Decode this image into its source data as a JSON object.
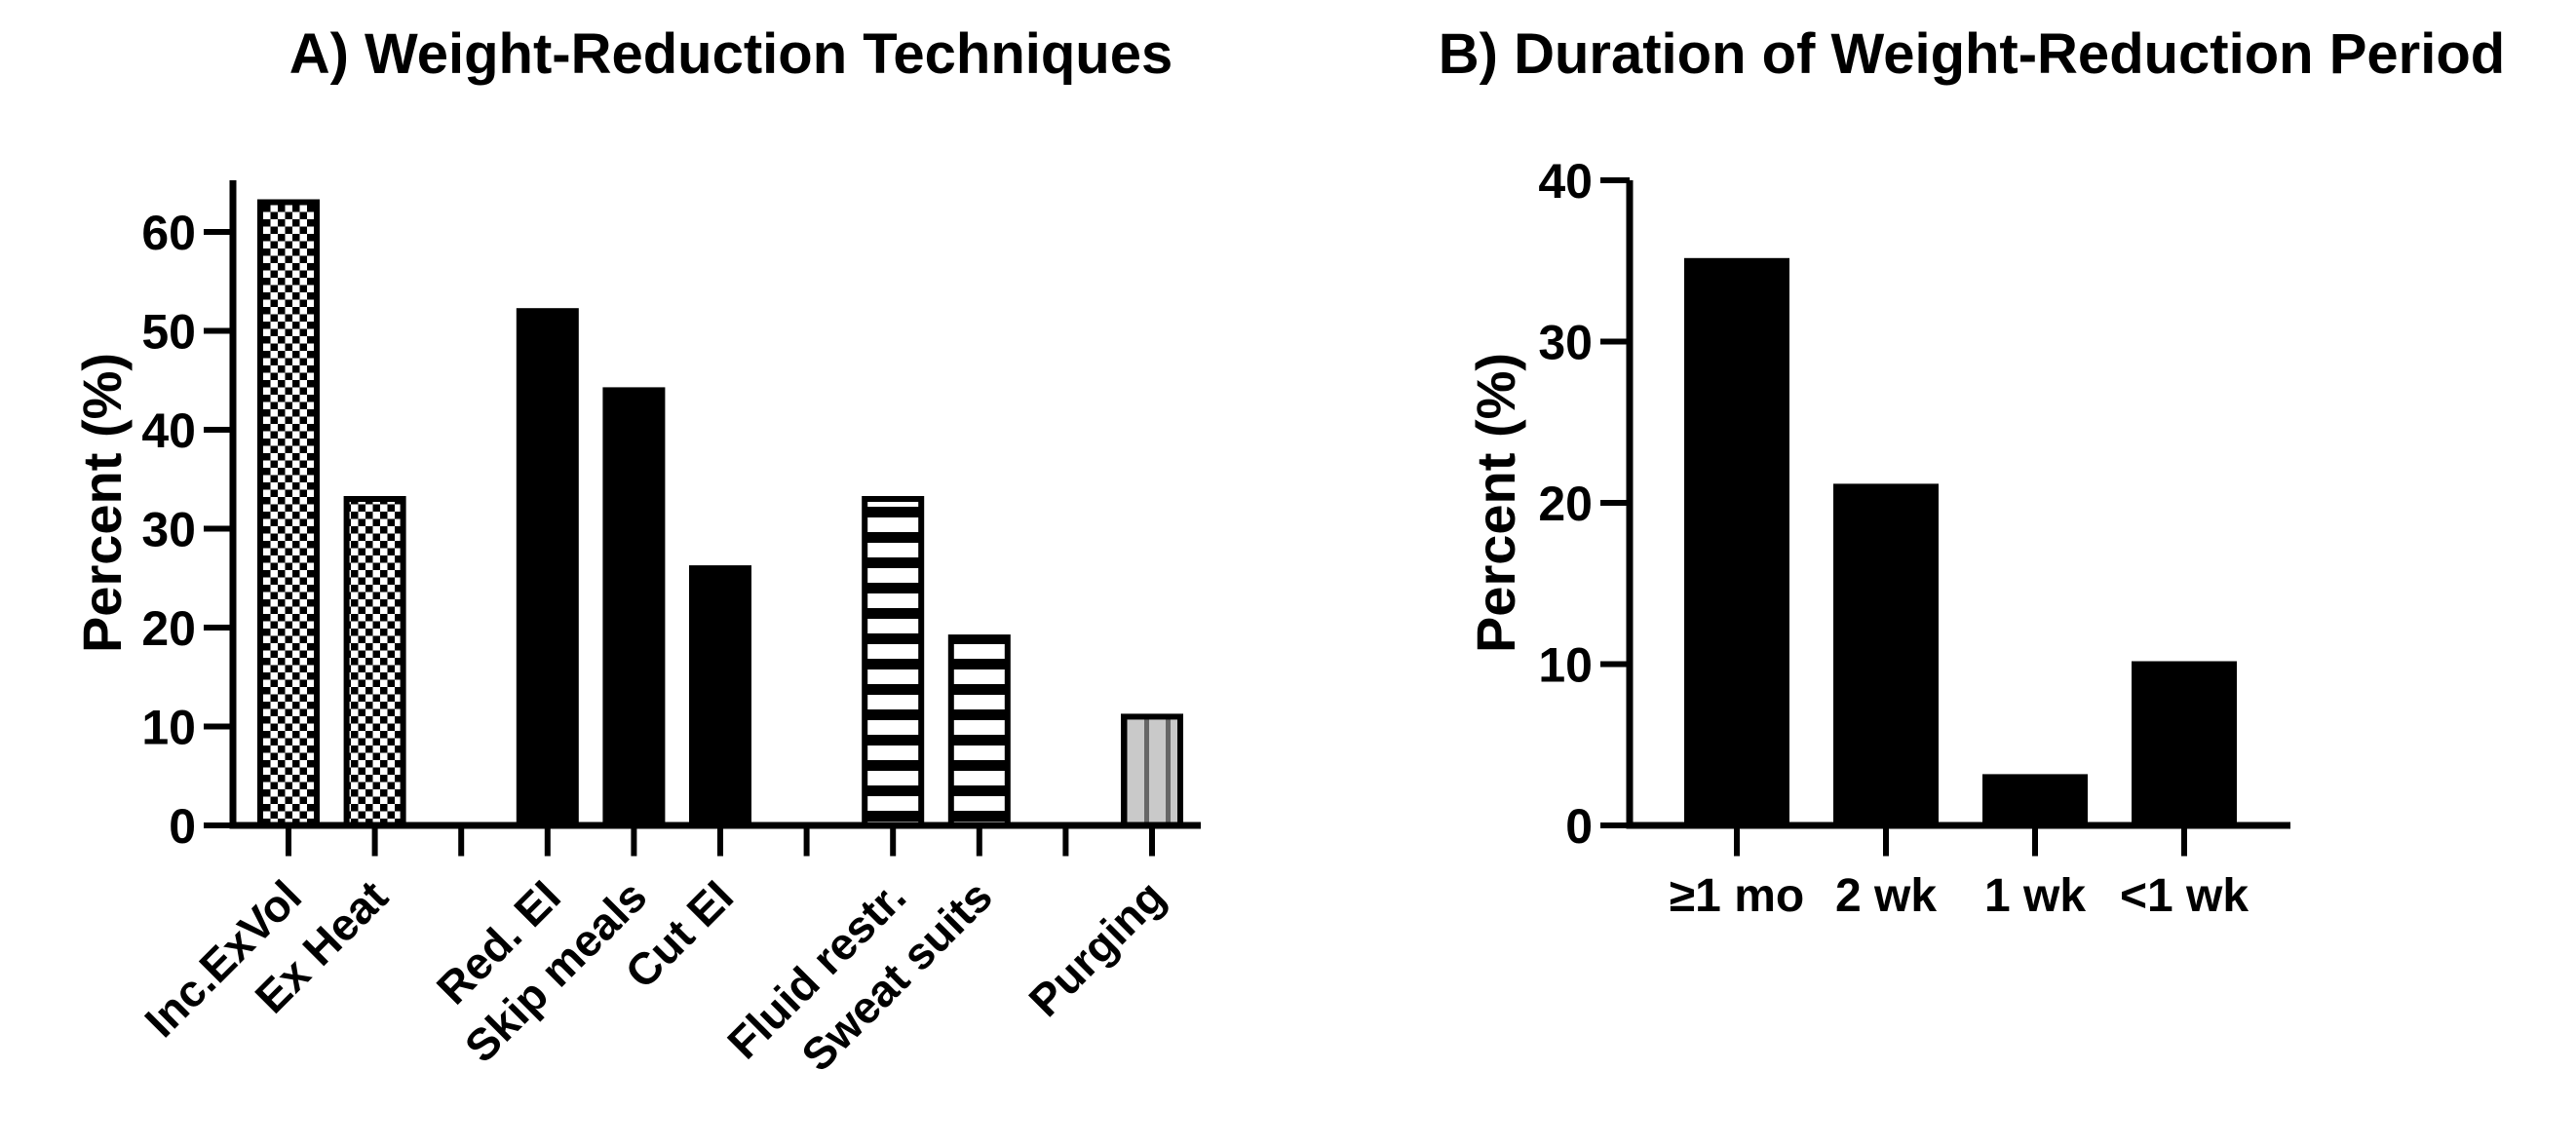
{
  "figure": {
    "background": "#ffffff",
    "ink": "#000000",
    "purging_fill": "#c9c9c9",
    "purging_line": "#666666"
  },
  "chart_data": [
    {
      "id": "A",
      "type": "bar",
      "title": "A) Weight-Reduction Techniques",
      "xlabel": "",
      "ylabel": "Percent (%)",
      "ylim": [
        0,
        65
      ],
      "yticks": [
        0,
        10,
        20,
        30,
        40,
        50,
        60
      ],
      "grid": false,
      "legend": "none",
      "categories": [
        "Inc.ExVol",
        "Ex Heat",
        "Red. EI",
        "Skip meals",
        "Cut EI",
        "Fluid restr.",
        "Sweat suits",
        "Purging"
      ],
      "values": [
        63,
        33,
        52,
        44,
        26,
        33,
        19,
        11
      ],
      "bar_styles": [
        "checker",
        "checker",
        "solid",
        "solid",
        "solid",
        "hstripe",
        "hstripe",
        "vlines"
      ],
      "bar_slots": [
        0,
        1,
        3,
        4,
        5,
        7,
        8,
        10
      ],
      "num_slots": 11,
      "tick_label_rotation": 45
    },
    {
      "id": "B",
      "type": "bar",
      "title": "B) Duration of Weight-Reduction Period",
      "xlabel": "",
      "ylabel": "Percent (%)",
      "ylim": [
        0,
        40
      ],
      "yticks": [
        0,
        10,
        20,
        30,
        40
      ],
      "grid": false,
      "legend": "none",
      "categories": [
        "≥1 mo",
        "2 wk",
        "1 wk",
        "<1 wk"
      ],
      "values": [
        35,
        21,
        3,
        10
      ],
      "bar_styles": [
        "solid",
        "solid",
        "solid",
        "solid"
      ],
      "bar_slots": [
        0,
        1,
        2,
        3
      ],
      "num_slots": 4,
      "tick_label_rotation": 0
    }
  ]
}
